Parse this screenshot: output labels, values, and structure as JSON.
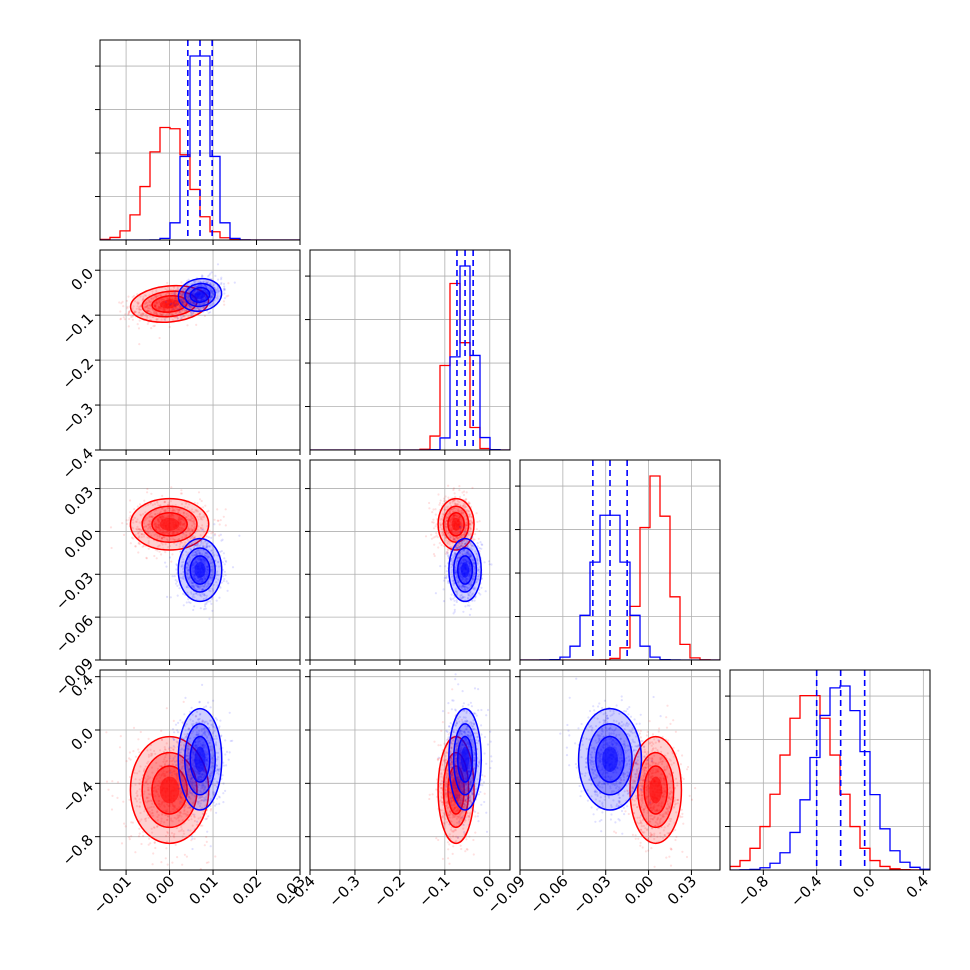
{
  "chart_data": {
    "type": "corner",
    "colors": {
      "red": "#ff0000",
      "blue": "#0000ff"
    },
    "parameters": [
      {
        "range": [
          -0.016,
          0.03
        ],
        "ticks": [
          -0.01,
          0.0,
          0.01,
          0.02,
          0.03
        ],
        "tick_labels": [
          "−0.01",
          "0.00",
          "0.01",
          "0.02",
          "0.03"
        ]
      },
      {
        "range": [
          -0.4,
          0.045
        ],
        "ticks": [
          -0.4,
          -0.3,
          -0.2,
          -0.1,
          0.0
        ],
        "tick_labels": [
          "−0.4",
          "−0.3",
          "−0.2",
          "−0.1",
          "0.0"
        ]
      },
      {
        "range": [
          -0.09,
          0.05
        ],
        "ticks": [
          -0.09,
          -0.06,
          -0.03,
          0.0,
          0.03
        ],
        "tick_labels": [
          "−0.09",
          "−0.06",
          "−0.03",
          "0.00",
          "0.03"
        ]
      },
      {
        "range": [
          -1.05,
          0.45
        ],
        "ticks": [
          -0.8,
          -0.4,
          0.0,
          0.4
        ],
        "tick_labels": [
          "−0.8",
          "−0.4",
          "0.0",
          "0.4"
        ]
      }
    ],
    "row_ticks": [
      null,
      {
        "ticks": [
          0.0,
          -0.1,
          -0.2,
          -0.3,
          -0.4
        ],
        "tick_labels": [
          "0.0",
          "−0.1",
          "−0.2",
          "−0.3",
          "−0.4"
        ]
      },
      {
        "ticks": [
          0.03,
          0.0,
          -0.03,
          -0.06,
          -0.09
        ],
        "tick_labels": [
          "0.03",
          "0.00",
          "−0.03",
          "−0.06",
          "−0.09"
        ]
      },
      {
        "ticks": [
          0.4,
          0.0,
          -0.4,
          -0.8
        ],
        "tick_labels": [
          "0.4",
          "0.0",
          "−0.4",
          "−0.8"
        ]
      }
    ],
    "series": [
      {
        "color": "red",
        "mean": [
          0.0,
          -0.075,
          0.005,
          -0.45
        ],
        "std": [
          0.0045,
          0.02,
          0.009,
          0.2
        ]
      },
      {
        "color": "blue",
        "mean": [
          0.007,
          -0.055,
          -0.027,
          -0.22
        ],
        "std": [
          0.0025,
          0.018,
          0.011,
          0.19
        ]
      }
    ],
    "quantiles_blue": [
      [
        0.0042,
        0.007,
        0.0098
      ],
      [
        -0.073,
        -0.055,
        -0.037
      ],
      [
        -0.039,
        -0.027,
        -0.015
      ],
      [
        -0.4,
        -0.22,
        -0.04
      ]
    ],
    "grid": true
  }
}
